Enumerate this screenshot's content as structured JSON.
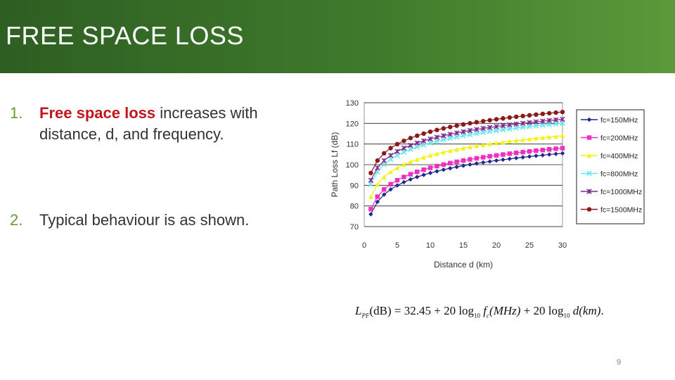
{
  "slide": {
    "title": "FREE SPACE LOSS",
    "page_number": "9",
    "accent_color": "#3f7a2c"
  },
  "bullets": [
    {
      "number": "1.",
      "highlight": "Free space loss",
      "text": " increases with distance, d, and frequency."
    },
    {
      "number": "2.",
      "text": "Typical behaviour is as shown."
    }
  ],
  "formula": {
    "lhs": "L",
    "lhs_sub": "PF",
    "lhs_unit": "(dB)",
    "eq": " = 32.45 + 20 log",
    "log_sub": "10",
    "fc": "f",
    "fc_sub": "c",
    "fc_unit": "(MHz)",
    "plus": " + 20 log",
    "d": "d",
    "d_unit": "(km)",
    "tail": "."
  },
  "chart_data": {
    "type": "line",
    "xlabel": "Distance d (km)",
    "ylabel": "Path Loss Lf (dB)",
    "xlim": [
      0,
      30
    ],
    "ylim": [
      70,
      130
    ],
    "x_ticks": [
      0,
      5,
      10,
      15,
      20,
      25,
      30
    ],
    "y_ticks": [
      70,
      80,
      90,
      100,
      110,
      120,
      130
    ],
    "grid": "horizontal",
    "legend_position": "right",
    "x": [
      1,
      2,
      3,
      4,
      5,
      6,
      7,
      8,
      9,
      10,
      11,
      12,
      13,
      14,
      15,
      16,
      17,
      18,
      19,
      20,
      21,
      22,
      23,
      24,
      25,
      26,
      27,
      28,
      29,
      30
    ],
    "series": [
      {
        "name": "fc=150MHz",
        "color": "#1f2a8c",
        "marker": "diamond",
        "fc_mhz": 150
      },
      {
        "name": "fc=200MHz",
        "color": "#f02fbf",
        "marker": "square",
        "fc_mhz": 200
      },
      {
        "name": "fc=400MHz",
        "color": "#f2f20a",
        "marker": "triangle",
        "fc_mhz": 400
      },
      {
        "name": "fc=800MHz",
        "color": "#5fe8f0",
        "marker": "x",
        "fc_mhz": 800
      },
      {
        "name": "fc=1000MHz",
        "color": "#7a2a8e",
        "marker": "star",
        "fc_mhz": 1000
      },
      {
        "name": "fc=1500MHz",
        "color": "#8a1a1a",
        "marker": "circle",
        "fc_mhz": 1500
      }
    ]
  }
}
